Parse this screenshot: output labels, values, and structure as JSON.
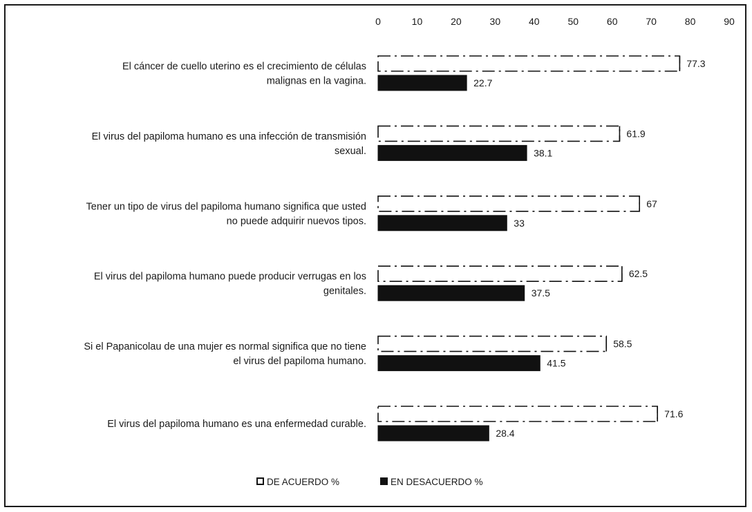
{
  "chart_data": {
    "type": "bar",
    "orientation": "horizontal",
    "categories": [
      [
        "El cáncer de cuello uterino es el crecimiento de células",
        "malignas en la vagina."
      ],
      [
        "El virus del papiloma humano es una infección de transmisión",
        "sexual."
      ],
      [
        "Tener un tipo de virus del papiloma humano significa que usted",
        "no puede adquirir nuevos tipos."
      ],
      [
        "El virus del papiloma humano puede producir verrugas en los",
        "genitales."
      ],
      [
        "Si el Papanicolau de una mujer es normal significa que no tiene",
        "el virus del papiloma humano."
      ],
      [
        "El virus del papiloma humano es una enfermedad curable."
      ]
    ],
    "series": [
      {
        "name": "DE ACUERDO %",
        "values": [
          77.3,
          61.9,
          67,
          62.5,
          58.5,
          71.6
        ],
        "data_labels": [
          "77.3",
          "61.9",
          "67",
          "62.5",
          "58.5",
          "71.6"
        ],
        "color": "#ffffff",
        "stroke": "#111111"
      },
      {
        "name": "EN DESACUERDO %",
        "values": [
          22.7,
          38.1,
          33,
          37.5,
          41.5,
          28.4
        ],
        "data_labels": [
          "22.7",
          "38.1",
          "33",
          "37.5",
          "41.5",
          "28.4"
        ],
        "color": "#111111",
        "stroke": "#111111"
      }
    ],
    "xlim": [
      0,
      90
    ],
    "xticks": [
      0,
      10,
      20,
      30,
      40,
      50,
      60,
      70,
      80,
      90
    ],
    "x_axis_position": "top",
    "grid": false,
    "legend_position": "bottom-center",
    "title": "",
    "xlabel": "",
    "ylabel": ""
  }
}
